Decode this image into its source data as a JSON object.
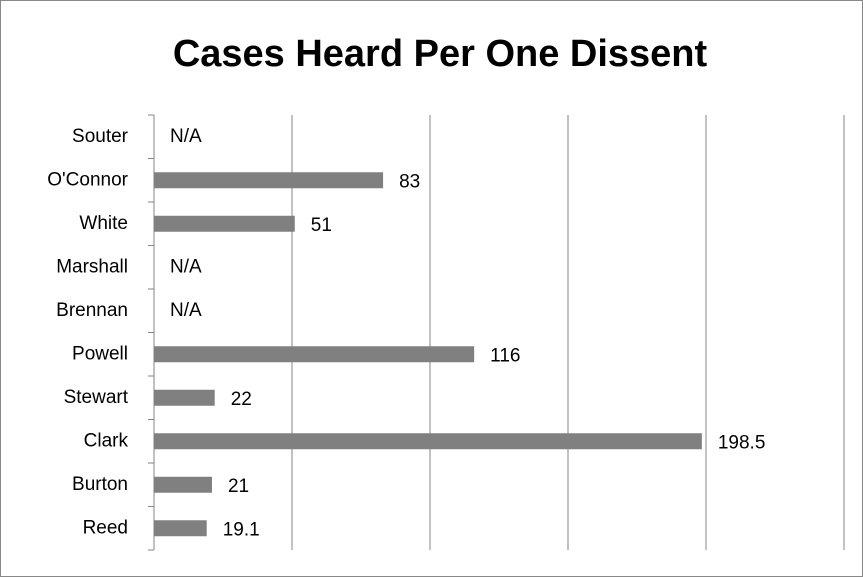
{
  "chart_data": {
    "type": "bar",
    "orientation": "horizontal",
    "title": "Cases Heard Per One Dissent",
    "categories": [
      "Souter",
      "O'Connor",
      "White",
      "Marshall",
      "Brennan",
      "Powell",
      "Stewart",
      "Clark",
      "Burton",
      "Reed"
    ],
    "values": [
      null,
      83,
      51,
      null,
      null,
      116,
      22,
      198.5,
      21,
      19.1
    ],
    "value_labels": [
      "N/A",
      null,
      null,
      "N/A",
      "N/A",
      null,
      null,
      null,
      null,
      null
    ],
    "color": "#808080",
    "xlim": [
      0,
      250
    ],
    "xticks": [
      0,
      50,
      100,
      150,
      200,
      250
    ],
    "grid": true
  }
}
